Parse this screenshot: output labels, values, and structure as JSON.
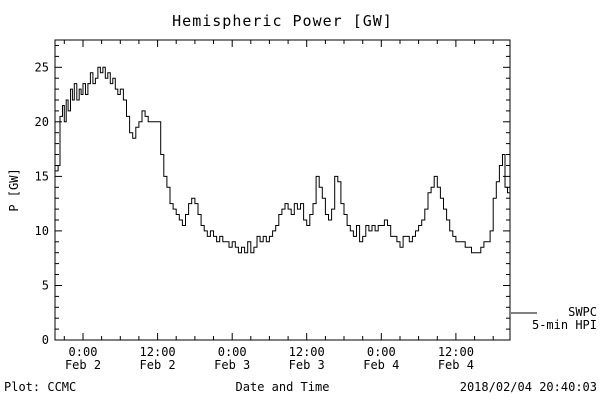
{
  "title": "Hemispheric Power [GW]",
  "footer": {
    "left": "Plot: CCMC",
    "right": "2018/02/04 20:40:03"
  },
  "legend": {
    "line1": "SWPC",
    "line2": "5-min HPI"
  },
  "colors": {
    "foreground": "#000000",
    "background": "#ffffff"
  },
  "chart_data": {
    "type": "line",
    "title": "Hemispheric Power [GW]",
    "xlabel": "Date and Time",
    "ylabel": "P [GW]",
    "ylim": [
      0,
      27.5
    ],
    "xlim_hours": [
      -4.5,
      68.7
    ],
    "x_unit": "hours since 2018-02-02 00:00",
    "grid": false,
    "step_interpolation": true,
    "legend_position": "right-bottom-outside",
    "x_major_ticks": [
      {
        "t": 0,
        "time": "0:00",
        "date": "Feb 2"
      },
      {
        "t": 12,
        "time": "12:00",
        "date": "Feb 2"
      },
      {
        "t": 24,
        "time": "0:00",
        "date": "Feb 3"
      },
      {
        "t": 36,
        "time": "12:00",
        "date": "Feb 3"
      },
      {
        "t": 48,
        "time": "0:00",
        "date": "Feb 4"
      },
      {
        "t": 60,
        "time": "12:00",
        "date": "Feb 4"
      }
    ],
    "y_major_ticks": [
      0,
      5,
      10,
      15,
      20,
      25
    ],
    "x_minor_step_hours": 3,
    "y_minor_step": 1,
    "series": [
      {
        "name": "SWPC 5-min HPI",
        "color": "#000000",
        "points": [
          [
            -4.5,
            15.5
          ],
          [
            -4,
            16
          ],
          [
            -3.7,
            20.5
          ],
          [
            -3.3,
            21.5
          ],
          [
            -3,
            20
          ],
          [
            -2.7,
            22
          ],
          [
            -2.4,
            21
          ],
          [
            -2,
            23
          ],
          [
            -1.7,
            22
          ],
          [
            -1.4,
            23.5
          ],
          [
            -1,
            22
          ],
          [
            -0.6,
            23
          ],
          [
            -0.3,
            22.5
          ],
          [
            0,
            23.5
          ],
          [
            0.4,
            22.5
          ],
          [
            0.8,
            23.5
          ],
          [
            1.2,
            24.5
          ],
          [
            1.6,
            23.5
          ],
          [
            2,
            24
          ],
          [
            2.4,
            25
          ],
          [
            2.8,
            24.5
          ],
          [
            3.2,
            25
          ],
          [
            3.6,
            24
          ],
          [
            4,
            24.5
          ],
          [
            4.4,
            23.5
          ],
          [
            4.8,
            24
          ],
          [
            5.2,
            23
          ],
          [
            5.6,
            22.5
          ],
          [
            6,
            23
          ],
          [
            6.5,
            22
          ],
          [
            7,
            20.5
          ],
          [
            7.5,
            19
          ],
          [
            8,
            18.5
          ],
          [
            8.5,
            19.5
          ],
          [
            9,
            20
          ],
          [
            9.5,
            21
          ],
          [
            10,
            20.5
          ],
          [
            10.5,
            20
          ],
          [
            11,
            20
          ],
          [
            11.5,
            20
          ],
          [
            12,
            20
          ],
          [
            12.5,
            17
          ],
          [
            13,
            15
          ],
          [
            13.5,
            14
          ],
          [
            14,
            12.5
          ],
          [
            14.5,
            12
          ],
          [
            15,
            11.5
          ],
          [
            15.5,
            11
          ],
          [
            16,
            10.5
          ],
          [
            16.5,
            11.5
          ],
          [
            17,
            12.5
          ],
          [
            17.5,
            13
          ],
          [
            18,
            12.5
          ],
          [
            18.5,
            11.5
          ],
          [
            19,
            10.5
          ],
          [
            19.5,
            10
          ],
          [
            20,
            9.5
          ],
          [
            20.5,
            10
          ],
          [
            21,
            9.5
          ],
          [
            21.5,
            9
          ],
          [
            22,
            9.5
          ],
          [
            22.5,
            9
          ],
          [
            23,
            9
          ],
          [
            23.5,
            8.5
          ],
          [
            24,
            9
          ],
          [
            24.5,
            8.5
          ],
          [
            25,
            8
          ],
          [
            25.5,
            8.5
          ],
          [
            26,
            8
          ],
          [
            26.5,
            9
          ],
          [
            27,
            8
          ],
          [
            27.5,
            8.5
          ],
          [
            28,
            9.5
          ],
          [
            28.5,
            9
          ],
          [
            29,
            9.5
          ],
          [
            29.5,
            9
          ],
          [
            30,
            9.5
          ],
          [
            30.5,
            10
          ],
          [
            31,
            10.5
          ],
          [
            31.5,
            11.5
          ],
          [
            32,
            12
          ],
          [
            32.5,
            12.5
          ],
          [
            33,
            12
          ],
          [
            33.5,
            11.5
          ],
          [
            34,
            12.5
          ],
          [
            34.5,
            12
          ],
          [
            35,
            12.5
          ],
          [
            35.5,
            11
          ],
          [
            36,
            10.5
          ],
          [
            36.5,
            11.5
          ],
          [
            37,
            12.5
          ],
          [
            37.5,
            15
          ],
          [
            38,
            14
          ],
          [
            38.5,
            13
          ],
          [
            39,
            11.5
          ],
          [
            39.5,
            11
          ],
          [
            40,
            12
          ],
          [
            40.5,
            15
          ],
          [
            41,
            14.5
          ],
          [
            41.5,
            12.5
          ],
          [
            42,
            11.5
          ],
          [
            42.5,
            10.5
          ],
          [
            43,
            10
          ],
          [
            43.5,
            9.5
          ],
          [
            44,
            10.5
          ],
          [
            44.5,
            9
          ],
          [
            45,
            9.5
          ],
          [
            45.5,
            10.5
          ],
          [
            46,
            10
          ],
          [
            46.5,
            10.5
          ],
          [
            47,
            10
          ],
          [
            47.5,
            10.5
          ],
          [
            48,
            10.5
          ],
          [
            48.5,
            11
          ],
          [
            49,
            10.5
          ],
          [
            49.5,
            9.5
          ],
          [
            50,
            9.5
          ],
          [
            50.5,
            9
          ],
          [
            51,
            8.5
          ],
          [
            51.5,
            9.5
          ],
          [
            52,
            9.5
          ],
          [
            52.5,
            9
          ],
          [
            53,
            9.5
          ],
          [
            53.5,
            10
          ],
          [
            54,
            10.5
          ],
          [
            54.5,
            11
          ],
          [
            55,
            12
          ],
          [
            55.5,
            13.5
          ],
          [
            56,
            14
          ],
          [
            56.5,
            15
          ],
          [
            57,
            14
          ],
          [
            57.5,
            13
          ],
          [
            58,
            12
          ],
          [
            58.5,
            11
          ],
          [
            59,
            10
          ],
          [
            59.5,
            9.5
          ],
          [
            60,
            9
          ],
          [
            60.5,
            9
          ],
          [
            61,
            9
          ],
          [
            61.5,
            8.5
          ],
          [
            62,
            8.5
          ],
          [
            62.5,
            8
          ],
          [
            63,
            8
          ],
          [
            63.5,
            8
          ],
          [
            64,
            8.5
          ],
          [
            64.5,
            9
          ],
          [
            65,
            9
          ],
          [
            65.5,
            10
          ],
          [
            66,
            13
          ],
          [
            66.5,
            14.5
          ],
          [
            67,
            16
          ],
          [
            67.5,
            17
          ],
          [
            67.9,
            14
          ],
          [
            68.3,
            13.5
          ],
          [
            68.6,
            13.5
          ]
        ]
      }
    ]
  }
}
